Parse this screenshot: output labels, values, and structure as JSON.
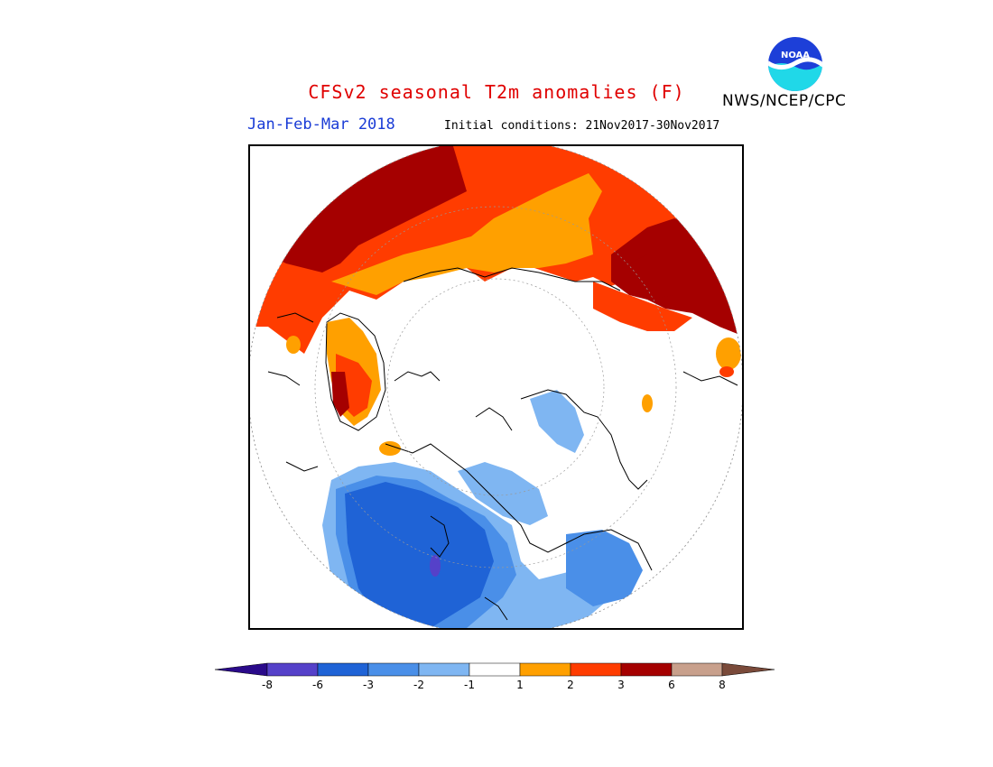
{
  "header": {
    "title": "CFSv2 seasonal T2m anomalies (F)",
    "agency": "NWS/NCEP/CPC",
    "logo_text": "NOAA",
    "period": "Jan-Feb-Mar 2018",
    "initial_conditions": "Initial conditions: 21Nov2017-30Nov2017"
  },
  "map": {
    "projection": "north-polar-stereographic",
    "variable": "2m temperature anomaly",
    "units": "F"
  },
  "legend": {
    "levels": [
      "-8",
      "-6",
      "-3",
      "-2",
      "-1",
      "1",
      "2",
      "3",
      "6",
      "8"
    ],
    "colors": [
      "#2a0a8a",
      "#5541c9",
      "#1f63d6",
      "#4a8fe8",
      "#7fb6f2",
      "#ffffff",
      "#ffa000",
      "#ff3c00",
      "#a50000",
      "#c8a08c",
      "#7a4a3a"
    ]
  }
}
